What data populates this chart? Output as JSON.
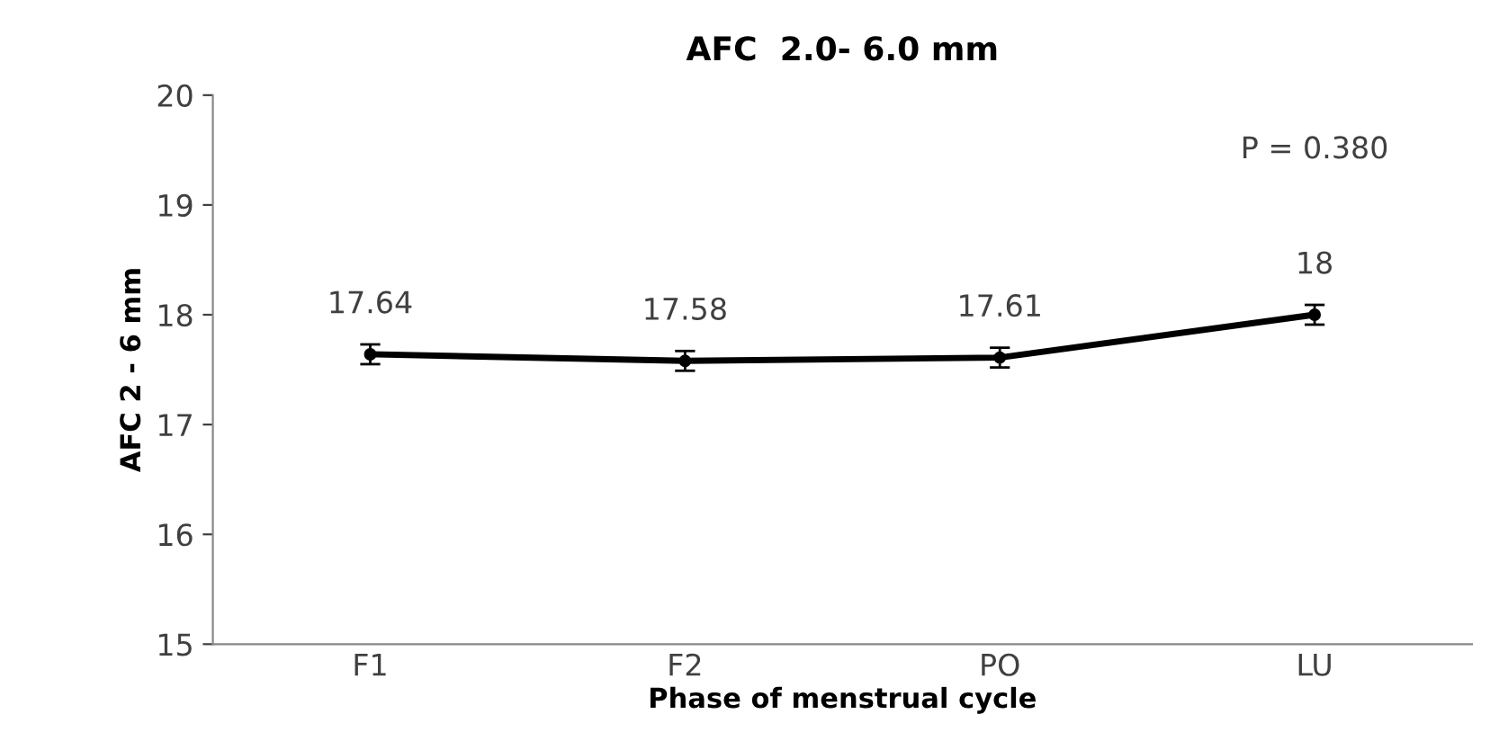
{
  "chart_data": {
    "type": "line",
    "title": "AFC  2.0- 6.0 mm",
    "xlabel": "Phase of menstrual cycle",
    "ylabel": "AFC 2 - 6 mm",
    "categories": [
      "F1",
      "F2",
      "PO",
      "LU"
    ],
    "series": [
      {
        "color": "#000000",
        "values": [
          17.64,
          17.58,
          17.61,
          18
        ],
        "errors": [
          0.09,
          0.09,
          0.09,
          0.09
        ]
      }
    ],
    "ylim": [
      15,
      20
    ],
    "yticks": [
      15,
      16,
      17,
      18,
      19,
      20
    ],
    "data_labels": true,
    "marker": "circle",
    "line_style": "solid",
    "grid": false,
    "legend": false,
    "annotations": [
      "P = 0.380"
    ]
  }
}
